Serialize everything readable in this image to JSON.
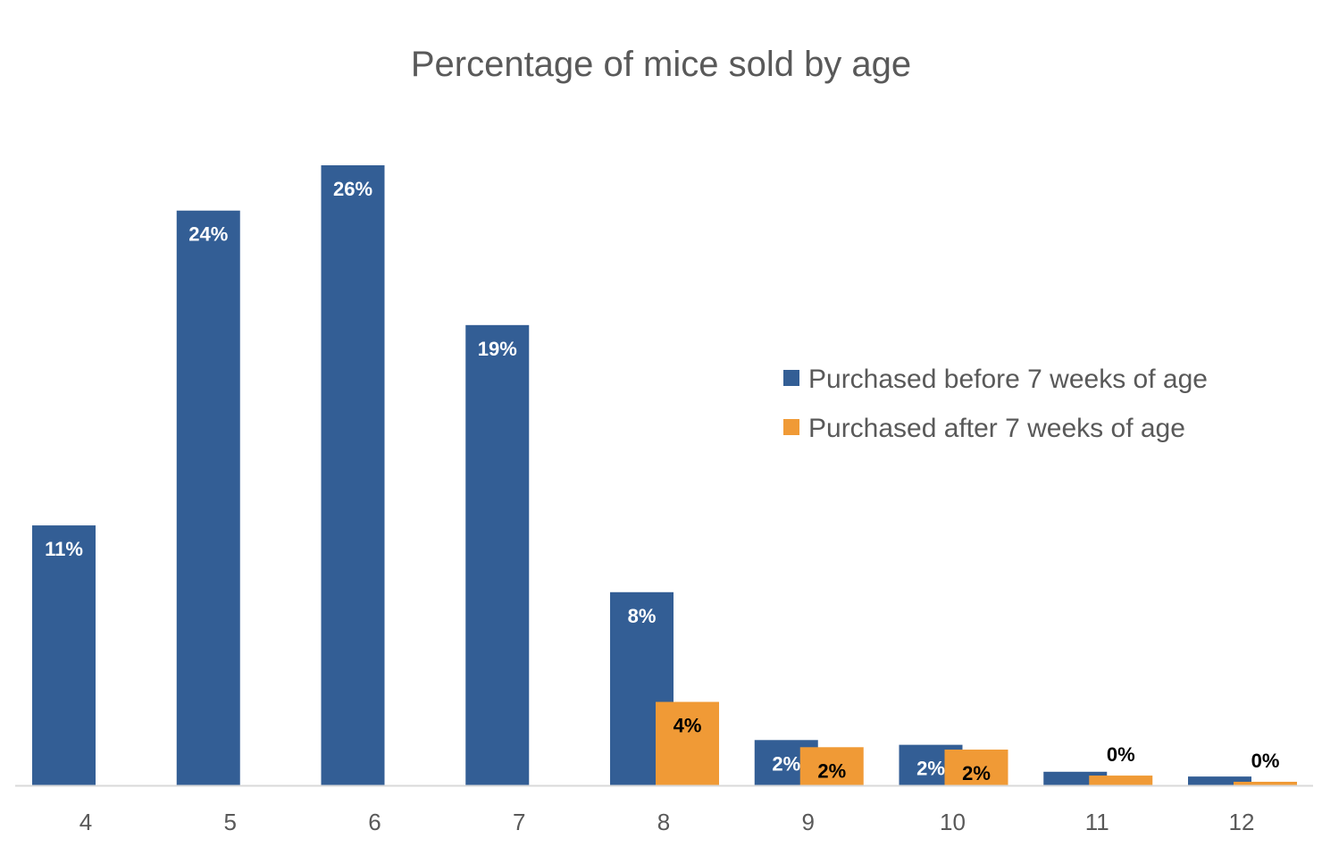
{
  "chart_data": {
    "type": "bar",
    "title": "Percentage of mice sold by age",
    "xlabel": "",
    "ylabel": "",
    "categories": [
      "4",
      "5",
      "6",
      "7",
      "8",
      "9",
      "10",
      "11",
      "12"
    ],
    "ylim": [
      0,
      26
    ],
    "grid": false,
    "legend_position": "right",
    "series": [
      {
        "name": "Purchased before 7 weeks of age",
        "color": "#335E95",
        "values": [
          10.9,
          24.1,
          26.0,
          19.3,
          8.1,
          1.9,
          1.7,
          0.57,
          0.37
        ],
        "labels": [
          "11%",
          "24%",
          "26%",
          "19%",
          "8%",
          "2%",
          "2%",
          "",
          ""
        ],
        "label_color": "#FFFFFF"
      },
      {
        "name": "Purchased after 7 weeks of age",
        "color": "#F09A36",
        "values": [
          0,
          0,
          0,
          0,
          3.5,
          1.6,
          1.5,
          0.41,
          0.15
        ],
        "labels": [
          "",
          "",
          "",
          "",
          "4%",
          "2%",
          "2%",
          "0%",
          "0%"
        ],
        "label_color": "#000000"
      }
    ]
  }
}
